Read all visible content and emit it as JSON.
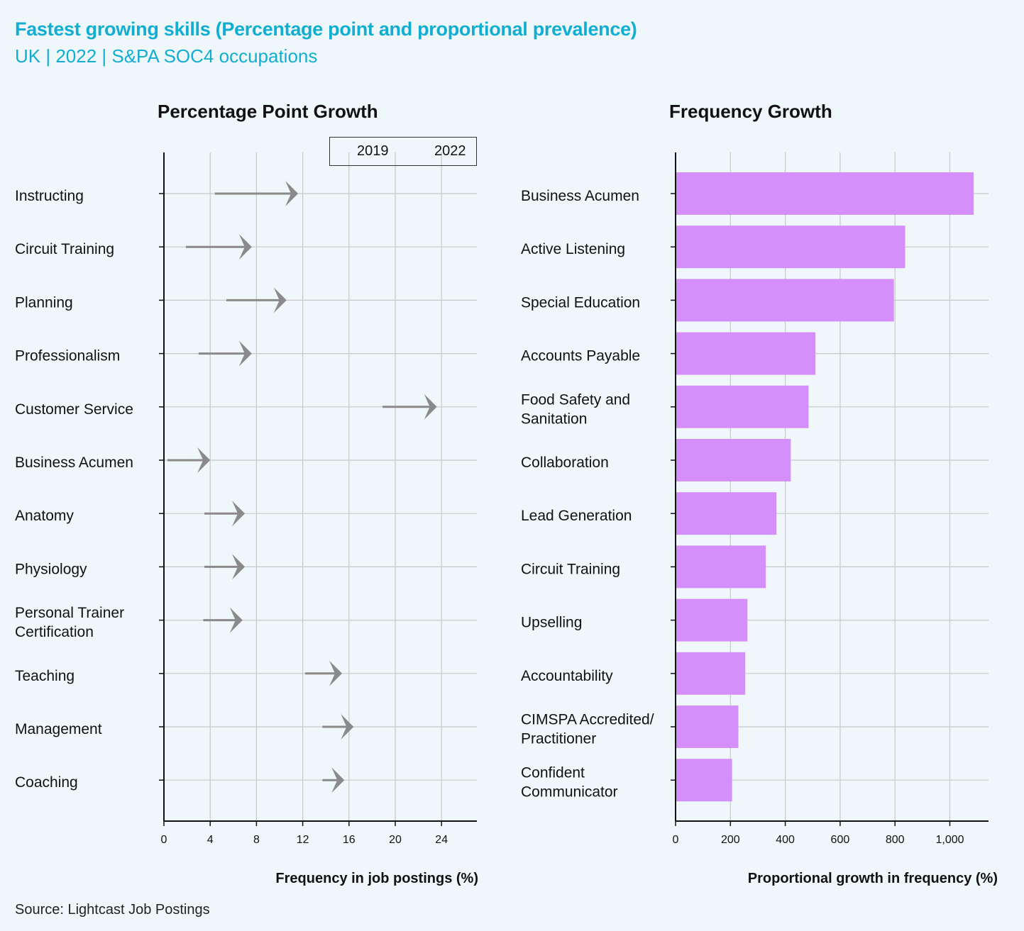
{
  "header": {
    "title": "Fastest growing skills (Percentage point and proportional prevalence)",
    "subtitle": "UK | 2022 | S&PA SOC4 occupations"
  },
  "source": "Source: Lightcast Job Postings",
  "colors": {
    "accent": "#12aed1",
    "arrow": "#8a8a8a",
    "bar": "#d58ffb",
    "grid": "#c8c8c8",
    "background": "#f0f7fa"
  },
  "chart_data": [
    {
      "type": "arrow-dumbbell",
      "title": "Percentage Point Growth",
      "xlabel": "Frequency in job postings  (%)",
      "xlim": [
        0,
        27
      ],
      "xticks": [
        0,
        4,
        8,
        12,
        16,
        20,
        24
      ],
      "legend": {
        "from_label": "2019",
        "to_label": "2022",
        "position": "top-right"
      },
      "grid": true,
      "categories": [
        "Instructing",
        "Circuit Training",
        "Planning",
        "Professionalism",
        "Customer Service",
        "Business Acumen",
        "Anatomy",
        "Physiology",
        "Personal Trainer Certification",
        "Teaching",
        "Management",
        "Coaching"
      ],
      "series": [
        {
          "name": "2019",
          "values": [
            4.4,
            1.9,
            5.4,
            3.0,
            18.9,
            0.3,
            3.5,
            3.5,
            3.4,
            12.2,
            13.7,
            13.7
          ]
        },
        {
          "name": "2022",
          "values": [
            11.6,
            7.6,
            10.6,
            7.6,
            23.6,
            4.0,
            7.0,
            7.0,
            6.8,
            15.4,
            16.4,
            15.6
          ]
        }
      ]
    },
    {
      "type": "bar",
      "orientation": "horizontal",
      "title": "Frequency Growth",
      "xlabel": "Proportional growth in frequency  (%)",
      "xlim": [
        0,
        1140
      ],
      "xticks": [
        0,
        200,
        400,
        600,
        800,
        1000
      ],
      "xtick_labels": [
        "0",
        "200",
        "400",
        "600",
        "800",
        "1,000"
      ],
      "grid": true,
      "categories": [
        "Business Acumen",
        "Active Listening",
        "Special Education",
        "Accounts Payable",
        "Food Safety and Sanitation",
        "Collaboration",
        "Lead Generation",
        "Circuit Training",
        "Upselling",
        "Accountability",
        "CIMSPA Accredited/ Practitioner",
        "Confident Communicator"
      ],
      "category_lines": [
        [
          "Business Acumen"
        ],
        [
          "Active Listening"
        ],
        [
          "Special Education"
        ],
        [
          "Accounts Payable"
        ],
        [
          "Food Safety and",
          "Sanitation"
        ],
        [
          "Collaboration"
        ],
        [
          "Lead Generation"
        ],
        [
          "Circuit Training"
        ],
        [
          "Upselling"
        ],
        [
          "Accountability"
        ],
        [
          "CIMSPA Accredited/",
          "Practitioner"
        ],
        [
          "Confident",
          "Communicator"
        ]
      ],
      "values": [
        1087,
        837,
        796,
        510,
        485,
        420,
        368,
        329,
        262,
        254,
        229,
        206
      ]
    }
  ],
  "left_category_lines": [
    [
      "Instructing"
    ],
    [
      "Circuit Training"
    ],
    [
      "Planning"
    ],
    [
      "Professionalism"
    ],
    [
      "Customer Service"
    ],
    [
      "Business Acumen"
    ],
    [
      "Anatomy"
    ],
    [
      "Physiology"
    ],
    [
      "Personal Trainer",
      "Certification"
    ],
    [
      "Teaching"
    ],
    [
      "Management"
    ],
    [
      "Coaching"
    ]
  ]
}
